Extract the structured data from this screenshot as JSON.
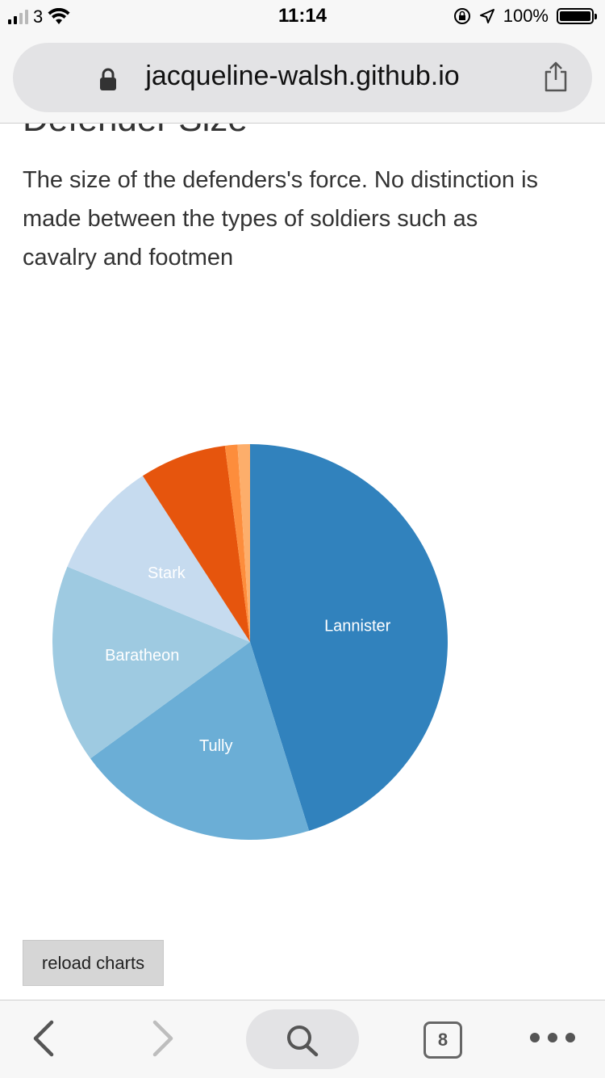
{
  "status_bar": {
    "carrier": "3",
    "time": "11:14",
    "battery_percent": "100%",
    "battery_level": 1.0,
    "signal_bars": 2
  },
  "browser": {
    "url": "jacqueline-walsh.github.io",
    "tab_count": "8"
  },
  "section": {
    "heading": "Defender Size",
    "description": "The size of the defenders's force. No distinction is made between the types of soldiers such as cavalry and footmen"
  },
  "chart_data": {
    "type": "pie",
    "title": "",
    "slices": [
      {
        "label": "Lannister",
        "value": 44.5,
        "color": "#3182bd",
        "show_label": true
      },
      {
        "label": "Tully",
        "value": 19.5,
        "color": "#6baed6",
        "show_label": true
      },
      {
        "label": "Baratheon",
        "value": 16.0,
        "color": "#9ecae1",
        "show_label": true
      },
      {
        "label": "Stark",
        "value": 9.5,
        "color": "#c6dbef",
        "show_label": true
      },
      {
        "label": "",
        "value": 7.0,
        "color": "#e6550d",
        "show_label": false
      },
      {
        "label": "",
        "value": 1.0,
        "color": "#fd8d3c",
        "show_label": false
      },
      {
        "label": "",
        "value": 1.0,
        "color": "#fdae6b",
        "show_label": false
      }
    ],
    "label_color": "#ffffff"
  },
  "buttons": {
    "reload_label": "reload charts"
  },
  "colors": {
    "browser_chrome": "#f7f7f7",
    "url_pill": "#e3e3e5",
    "button_bg": "#d6d6d6"
  }
}
